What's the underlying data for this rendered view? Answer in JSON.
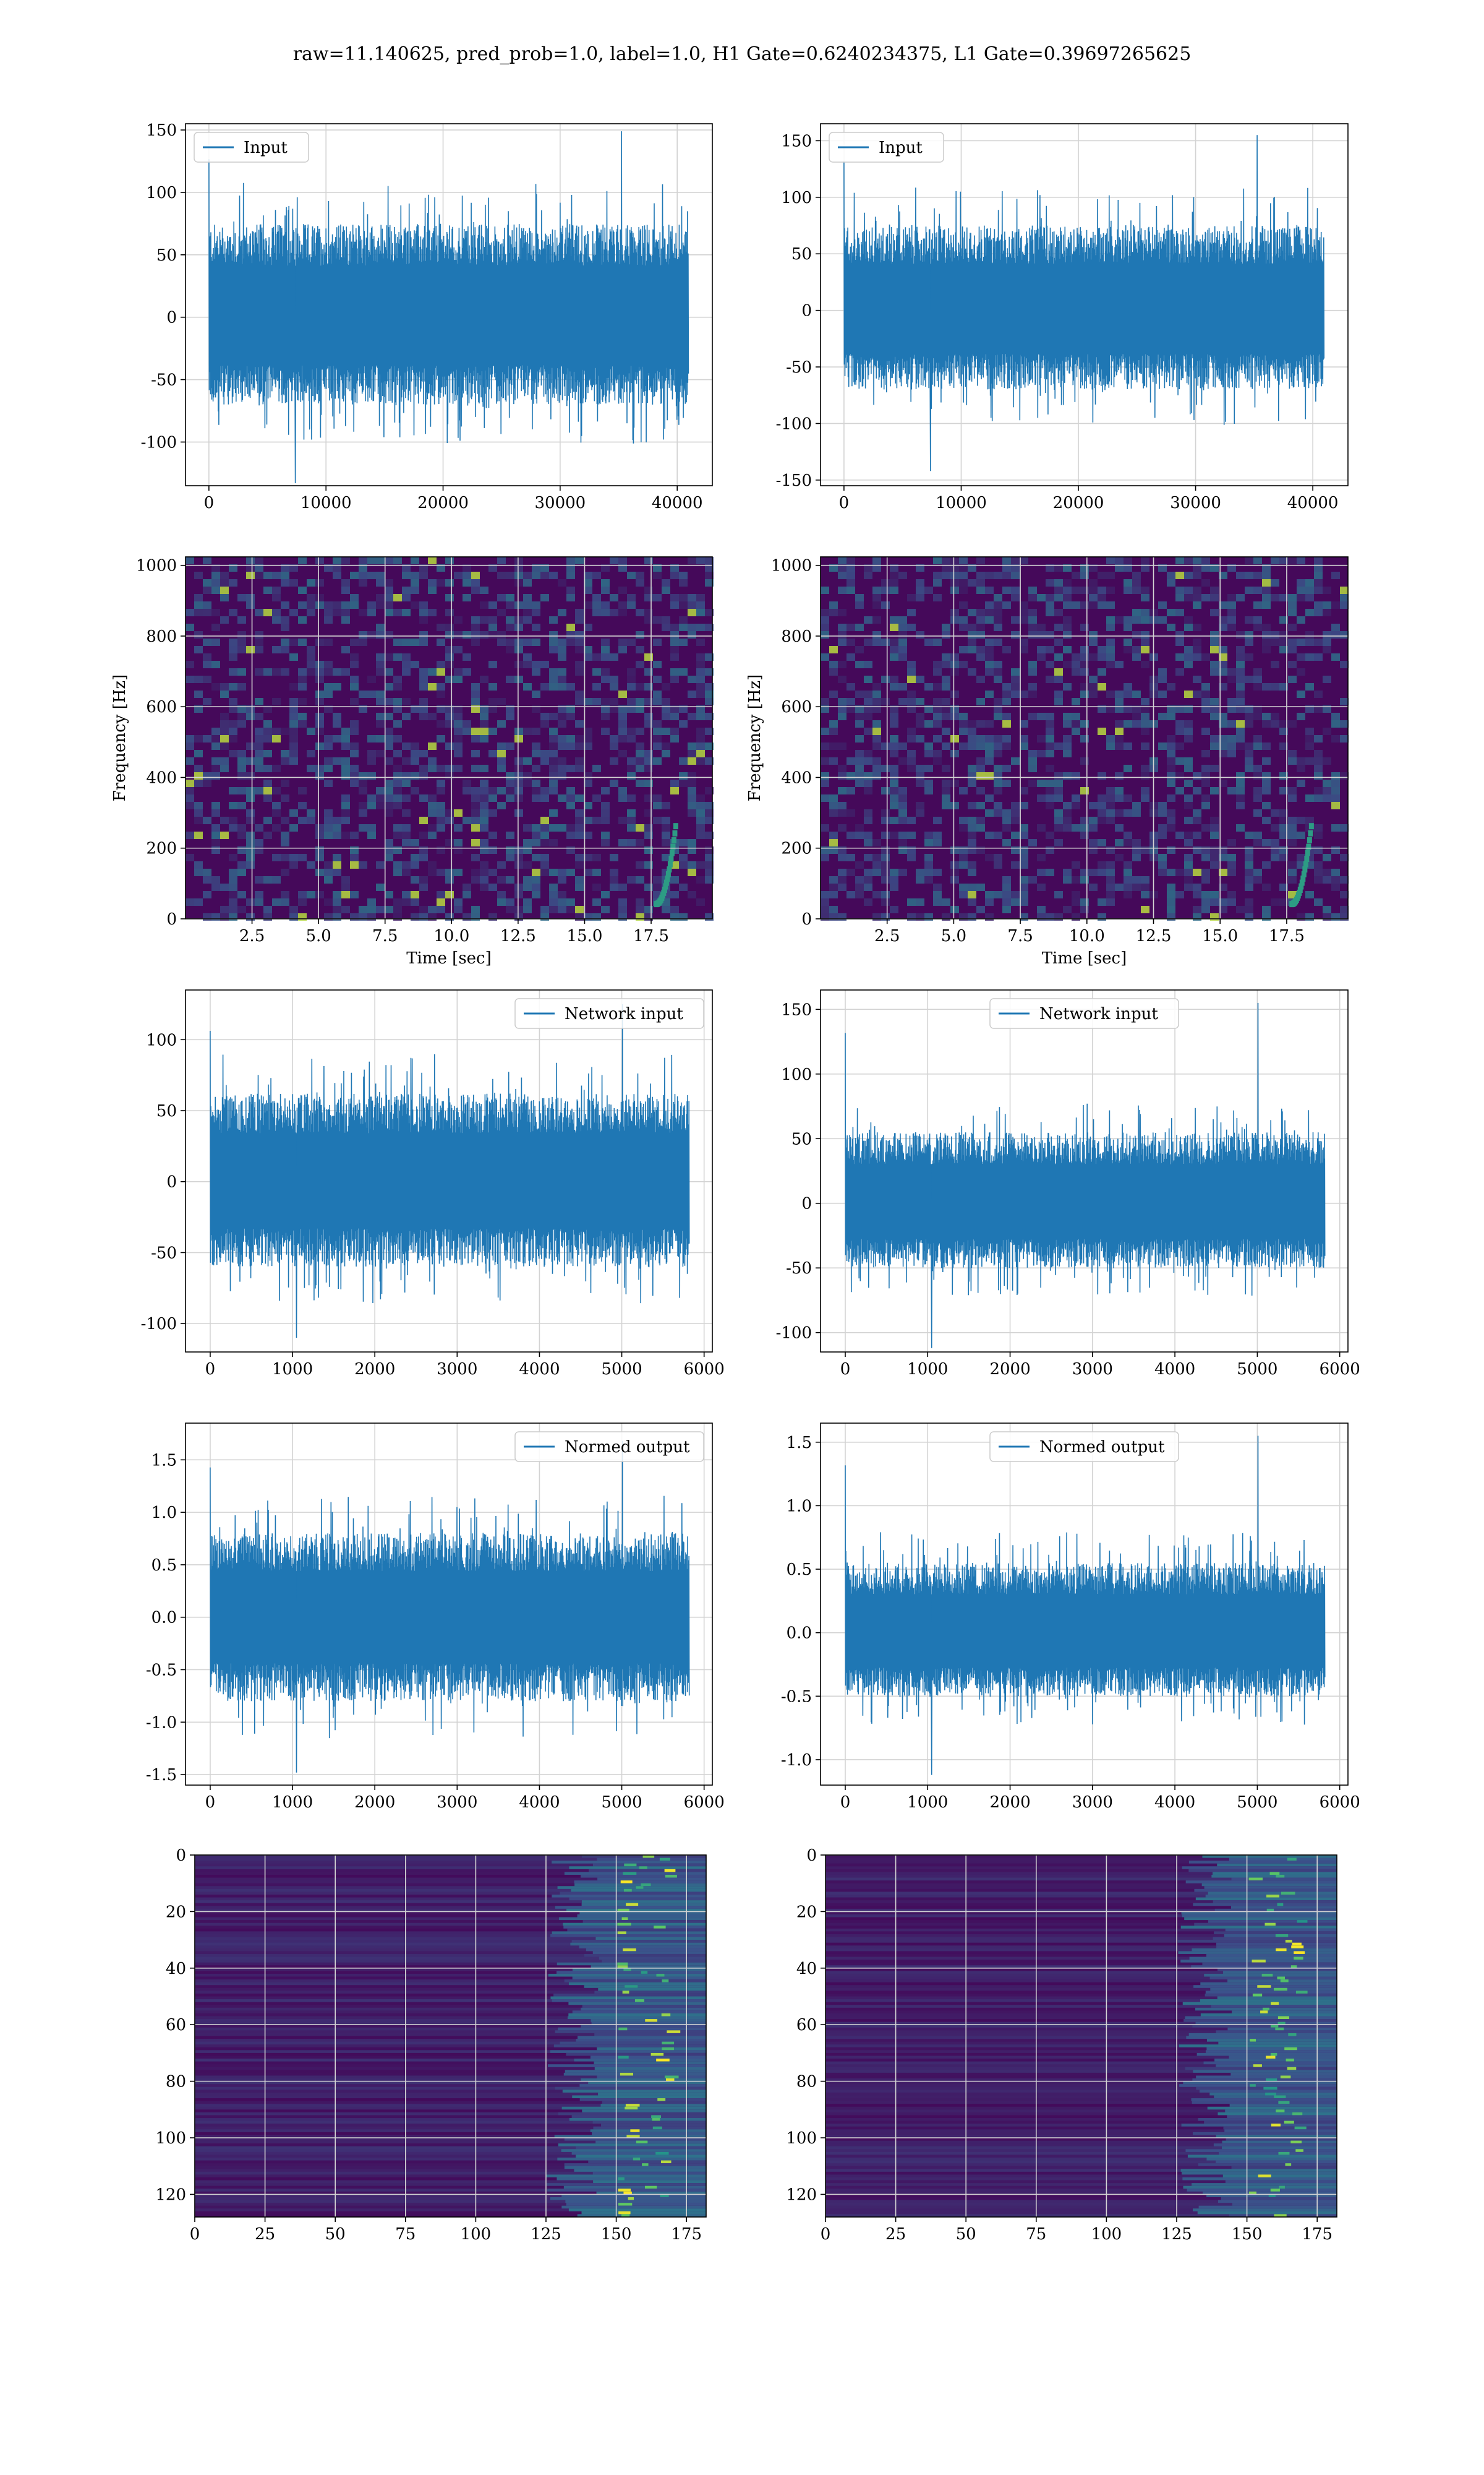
{
  "suptitle": "raw=11.140625, pred_prob=1.0, label=1.0, H1 Gate=0.6240234375, L1 Gate=0.39697265625",
  "colors": {
    "signal": "#1f77b4",
    "grid": "#d3d3d3",
    "viridis_dark": "#440154",
    "viridis_bright": "#fde725"
  },
  "chart_data": [
    {
      "id": "p1",
      "type": "line",
      "legend": "Input",
      "legend_loc": "upper left",
      "grid": true,
      "xlim": [
        -2000,
        43000
      ],
      "ylim": [
        -135,
        155
      ],
      "xticks": [
        0,
        10000,
        20000,
        30000,
        40000
      ],
      "yticks": [
        -100,
        -50,
        0,
        50,
        100,
        150
      ],
      "x_extent": [
        0,
        40960
      ],
      "envelope": {
        "upper": 75,
        "lower": -70,
        "peak_hi": 149,
        "peak_lo": -133
      }
    },
    {
      "id": "p2",
      "type": "line",
      "legend": "Input",
      "legend_loc": "upper left",
      "grid": true,
      "xlim": [
        -2000,
        43000
      ],
      "ylim": [
        -155,
        165
      ],
      "xticks": [
        0,
        10000,
        20000,
        30000,
        40000
      ],
      "yticks": [
        -150,
        -100,
        -50,
        0,
        50,
        100,
        150
      ],
      "x_extent": [
        0,
        40960
      ],
      "envelope": {
        "upper": 75,
        "lower": -70,
        "peak_hi": 155,
        "peak_lo": -142
      }
    },
    {
      "id": "p3",
      "type": "heatmap",
      "grid": true,
      "colormap": "viridis",
      "xlim": [
        0,
        19.8
      ],
      "ylim": [
        0,
        1024
      ],
      "xticks": [
        2.5,
        5.0,
        7.5,
        10.0,
        12.5,
        15.0,
        17.5
      ],
      "yticks": [
        0,
        200,
        400,
        600,
        800,
        1000
      ],
      "xlabel": "Time [sec]",
      "ylabel": "Frequency [Hz]"
    },
    {
      "id": "p4",
      "type": "heatmap",
      "grid": true,
      "colormap": "viridis",
      "xlim": [
        0,
        19.8
      ],
      "ylim": [
        0,
        1024
      ],
      "xticks": [
        2.5,
        5.0,
        7.5,
        10.0,
        12.5,
        15.0,
        17.5
      ],
      "yticks": [
        0,
        200,
        400,
        600,
        800,
        1000
      ],
      "xlabel": "Time [sec]",
      "ylabel": "Frequency [Hz]"
    },
    {
      "id": "p5",
      "type": "line",
      "legend": "Network input",
      "legend_loc": "upper right",
      "grid": true,
      "xlim": [
        -300,
        6100
      ],
      "ylim": [
        -120,
        135
      ],
      "xticks": [
        0,
        1000,
        2000,
        3000,
        4000,
        5000,
        6000
      ],
      "yticks": [
        -100,
        -50,
        0,
        50,
        100
      ],
      "x_extent": [
        0,
        5820
      ],
      "envelope": {
        "upper": 62,
        "lower": -60,
        "peak_hi": 125,
        "peak_lo": -110
      }
    },
    {
      "id": "p6",
      "type": "line",
      "legend": "Network input",
      "legend_loc": "upper center",
      "grid": true,
      "xlim": [
        -300,
        6100
      ],
      "ylim": [
        -115,
        165
      ],
      "xticks": [
        0,
        1000,
        2000,
        3000,
        4000,
        5000,
        6000
      ],
      "yticks": [
        -100,
        -50,
        0,
        50,
        100,
        150
      ],
      "x_extent": [
        0,
        5820
      ],
      "envelope": {
        "upper": 55,
        "lower": -50,
        "peak_hi": 155,
        "peak_lo": -112
      }
    },
    {
      "id": "p7",
      "type": "line",
      "legend": "Normed output",
      "legend_loc": "upper right",
      "grid": true,
      "xlim": [
        -300,
        6100
      ],
      "ylim": [
        -1.6,
        1.85
      ],
      "xticks": [
        0,
        1000,
        2000,
        3000,
        4000,
        5000,
        6000
      ],
      "yticks": [
        -1.5,
        -1.0,
        -0.5,
        0.0,
        0.5,
        1.0,
        1.5
      ],
      "x_extent": [
        0,
        5820
      ],
      "envelope": {
        "upper": 0.8,
        "lower": -0.8,
        "peak_hi": 1.68,
        "peak_lo": -1.48
      }
    },
    {
      "id": "p8",
      "type": "line",
      "legend": "Normed output",
      "legend_loc": "upper center",
      "grid": true,
      "xlim": [
        -300,
        6100
      ],
      "ylim": [
        -1.2,
        1.65
      ],
      "xticks": [
        0,
        1000,
        2000,
        3000,
        4000,
        5000,
        6000
      ],
      "yticks": [
        -1.0,
        -0.5,
        0.0,
        0.5,
        1.0,
        1.5
      ],
      "x_extent": [
        0,
        5820
      ],
      "envelope": {
        "upper": 0.55,
        "lower": -0.5,
        "peak_hi": 1.55,
        "peak_lo": -1.12
      }
    },
    {
      "id": "p9",
      "type": "heatmap",
      "grid": true,
      "colormap": "viridis",
      "inverted_y": true,
      "xlim": [
        0,
        182
      ],
      "ylim": [
        0,
        128
      ],
      "xticks": [
        0,
        25,
        50,
        75,
        100,
        125,
        150,
        175
      ],
      "yticks": [
        0,
        20,
        40,
        60,
        80,
        100,
        120
      ]
    },
    {
      "id": "p10",
      "type": "heatmap",
      "grid": true,
      "colormap": "viridis",
      "inverted_y": true,
      "xlim": [
        0,
        182
      ],
      "ylim": [
        0,
        128
      ],
      "xticks": [
        0,
        25,
        50,
        75,
        100,
        125,
        150,
        175
      ],
      "yticks": [
        0,
        20,
        40,
        60,
        80,
        100,
        120
      ]
    }
  ]
}
